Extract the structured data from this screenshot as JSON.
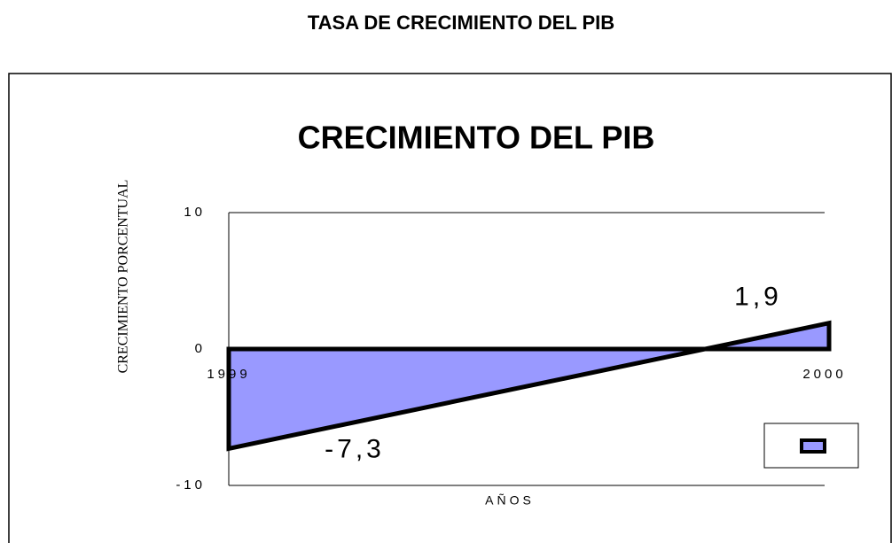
{
  "page_title": "TASA DE CRECIMIENTO DEL PIB",
  "chart_data": {
    "type": "area",
    "title": "CRECIMIENTO DEL PIB",
    "x_label": "AÑOS",
    "y_label": "CRECIMIENTO PORCENTUAL",
    "categories": [
      "1999",
      "2000"
    ],
    "values": [
      -7.3,
      1.9
    ],
    "value_labels": [
      "-7,3",
      "1,9"
    ],
    "color": "#9999ff",
    "ylim": [
      -10,
      10
    ],
    "yticks": [
      -10,
      0,
      10
    ],
    "grid": true
  }
}
